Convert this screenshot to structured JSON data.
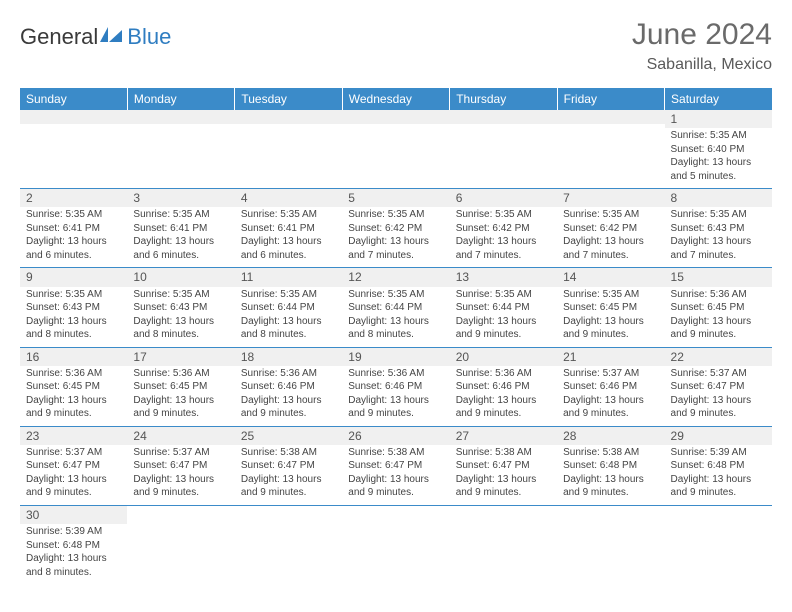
{
  "logo": {
    "text1": "General",
    "text2": "Blue"
  },
  "title": "June 2024",
  "location": "Sabanilla, Mexico",
  "colors": {
    "header_bg": "#3b8bc9",
    "header_fg": "#ffffff",
    "daybar_bg": "#f0f0f0",
    "rule": "#3b8bc9",
    "text": "#444444",
    "title": "#6a6a6a"
  },
  "daynames": [
    "Sunday",
    "Monday",
    "Tuesday",
    "Wednesday",
    "Thursday",
    "Friday",
    "Saturday"
  ],
  "weeks": [
    [
      null,
      null,
      null,
      null,
      null,
      null,
      {
        "n": "1",
        "sr": "5:35 AM",
        "ss": "6:40 PM",
        "dl": "13 hours and 5 minutes."
      }
    ],
    [
      {
        "n": "2",
        "sr": "5:35 AM",
        "ss": "6:41 PM",
        "dl": "13 hours and 6 minutes."
      },
      {
        "n": "3",
        "sr": "5:35 AM",
        "ss": "6:41 PM",
        "dl": "13 hours and 6 minutes."
      },
      {
        "n": "4",
        "sr": "5:35 AM",
        "ss": "6:41 PM",
        "dl": "13 hours and 6 minutes."
      },
      {
        "n": "5",
        "sr": "5:35 AM",
        "ss": "6:42 PM",
        "dl": "13 hours and 7 minutes."
      },
      {
        "n": "6",
        "sr": "5:35 AM",
        "ss": "6:42 PM",
        "dl": "13 hours and 7 minutes."
      },
      {
        "n": "7",
        "sr": "5:35 AM",
        "ss": "6:42 PM",
        "dl": "13 hours and 7 minutes."
      },
      {
        "n": "8",
        "sr": "5:35 AM",
        "ss": "6:43 PM",
        "dl": "13 hours and 7 minutes."
      }
    ],
    [
      {
        "n": "9",
        "sr": "5:35 AM",
        "ss": "6:43 PM",
        "dl": "13 hours and 8 minutes."
      },
      {
        "n": "10",
        "sr": "5:35 AM",
        "ss": "6:43 PM",
        "dl": "13 hours and 8 minutes."
      },
      {
        "n": "11",
        "sr": "5:35 AM",
        "ss": "6:44 PM",
        "dl": "13 hours and 8 minutes."
      },
      {
        "n": "12",
        "sr": "5:35 AM",
        "ss": "6:44 PM",
        "dl": "13 hours and 8 minutes."
      },
      {
        "n": "13",
        "sr": "5:35 AM",
        "ss": "6:44 PM",
        "dl": "13 hours and 9 minutes."
      },
      {
        "n": "14",
        "sr": "5:35 AM",
        "ss": "6:45 PM",
        "dl": "13 hours and 9 minutes."
      },
      {
        "n": "15",
        "sr": "5:36 AM",
        "ss": "6:45 PM",
        "dl": "13 hours and 9 minutes."
      }
    ],
    [
      {
        "n": "16",
        "sr": "5:36 AM",
        "ss": "6:45 PM",
        "dl": "13 hours and 9 minutes."
      },
      {
        "n": "17",
        "sr": "5:36 AM",
        "ss": "6:45 PM",
        "dl": "13 hours and 9 minutes."
      },
      {
        "n": "18",
        "sr": "5:36 AM",
        "ss": "6:46 PM",
        "dl": "13 hours and 9 minutes."
      },
      {
        "n": "19",
        "sr": "5:36 AM",
        "ss": "6:46 PM",
        "dl": "13 hours and 9 minutes."
      },
      {
        "n": "20",
        "sr": "5:36 AM",
        "ss": "6:46 PM",
        "dl": "13 hours and 9 minutes."
      },
      {
        "n": "21",
        "sr": "5:37 AM",
        "ss": "6:46 PM",
        "dl": "13 hours and 9 minutes."
      },
      {
        "n": "22",
        "sr": "5:37 AM",
        "ss": "6:47 PM",
        "dl": "13 hours and 9 minutes."
      }
    ],
    [
      {
        "n": "23",
        "sr": "5:37 AM",
        "ss": "6:47 PM",
        "dl": "13 hours and 9 minutes."
      },
      {
        "n": "24",
        "sr": "5:37 AM",
        "ss": "6:47 PM",
        "dl": "13 hours and 9 minutes."
      },
      {
        "n": "25",
        "sr": "5:38 AM",
        "ss": "6:47 PM",
        "dl": "13 hours and 9 minutes."
      },
      {
        "n": "26",
        "sr": "5:38 AM",
        "ss": "6:47 PM",
        "dl": "13 hours and 9 minutes."
      },
      {
        "n": "27",
        "sr": "5:38 AM",
        "ss": "6:47 PM",
        "dl": "13 hours and 9 minutes."
      },
      {
        "n": "28",
        "sr": "5:38 AM",
        "ss": "6:48 PM",
        "dl": "13 hours and 9 minutes."
      },
      {
        "n": "29",
        "sr": "5:39 AM",
        "ss": "6:48 PM",
        "dl": "13 hours and 9 minutes."
      }
    ],
    [
      {
        "n": "30",
        "sr": "5:39 AM",
        "ss": "6:48 PM",
        "dl": "13 hours and 8 minutes."
      },
      null,
      null,
      null,
      null,
      null,
      null
    ]
  ],
  "labels": {
    "sunrise": "Sunrise:",
    "sunset": "Sunset:",
    "daylight": "Daylight:"
  }
}
